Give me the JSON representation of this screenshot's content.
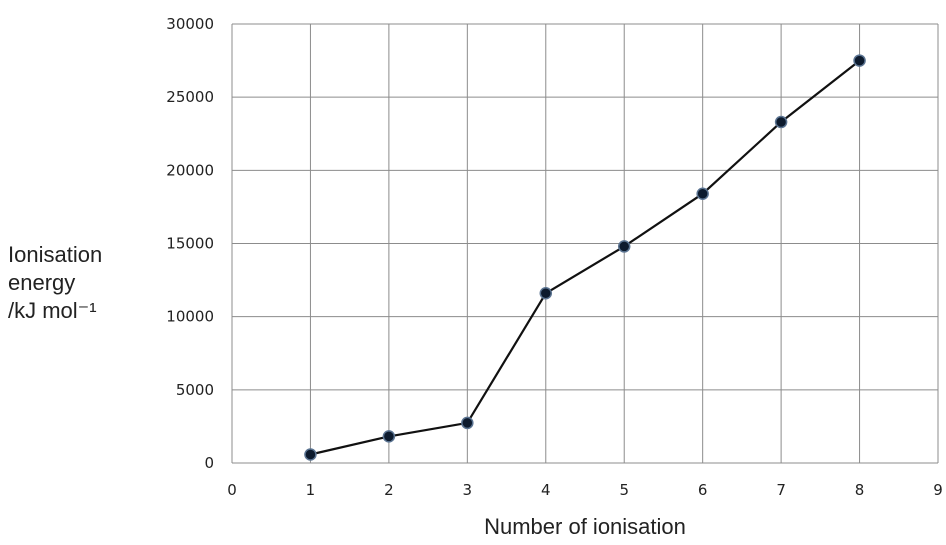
{
  "chart_data": {
    "type": "line",
    "title": "",
    "xlabel": "Number of ionisation",
    "ylabel_lines": [
      "Ionisation",
      "energy",
      "/kJ mol⁻¹"
    ],
    "x": [
      1,
      2,
      3,
      4,
      5,
      6,
      7,
      8
    ],
    "series": [
      {
        "values": [
          580,
          1820,
          2740,
          11600,
          14800,
          18400,
          23300,
          27500
        ]
      }
    ],
    "xlim": [
      0,
      9
    ],
    "ylim": [
      0,
      30000
    ],
    "xticks": [
      "0",
      "1",
      "2",
      "3",
      "4",
      "5",
      "6",
      "7",
      "8",
      "9"
    ],
    "yticks": [
      "0",
      "5000",
      "10000",
      "15000",
      "20000",
      "25000",
      "30000"
    ],
    "grid": true,
    "line_color": "#111111",
    "marker_color": "#0d1b2e",
    "marker_edge_color": "#5a7391",
    "grid_color": "#8c8c8c"
  }
}
